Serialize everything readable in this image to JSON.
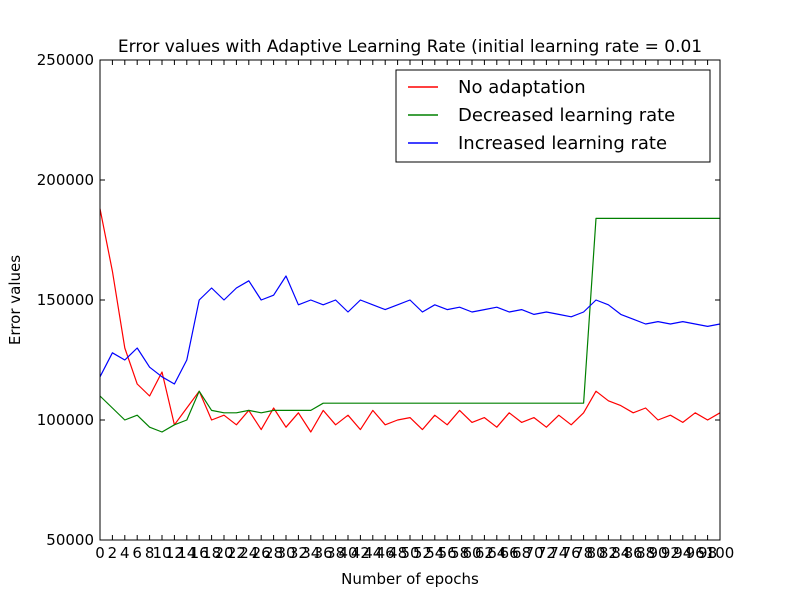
{
  "chart_data": {
    "type": "line",
    "title": "Error values with Adaptive Learning Rate (initial learning rate = 0.01",
    "xlabel": "Number of epochs",
    "ylabel": "Error values",
    "xlim": [
      0,
      1000
    ],
    "ylim": [
      50000,
      250000
    ],
    "y_ticks": [
      50000,
      100000,
      150000,
      200000,
      250000
    ],
    "y_tick_labels": [
      "50000",
      "100000",
      "150000",
      "200000",
      "250000"
    ],
    "x_tick_labels": [
      "0",
      "2",
      "4",
      "6",
      "8",
      "10",
      "12",
      "14",
      "16",
      "18",
      "20",
      "22",
      "24",
      "26",
      "28",
      "30",
      "32",
      "34",
      "36",
      "38",
      "40",
      "42",
      "44",
      "46",
      "48",
      "50",
      "52",
      "54",
      "56",
      "58",
      "60",
      "62",
      "64",
      "66",
      "68",
      "70",
      "72",
      "74",
      "76",
      "78",
      "80",
      "82",
      "84",
      "86",
      "88",
      "90",
      "92",
      "94",
      "96",
      "98",
      "100"
    ],
    "grid": false,
    "legend_position": "top-right",
    "series": [
      {
        "name": "No adaptation",
        "color": "#ff0000",
        "x": [
          0,
          20,
          40,
          60,
          80,
          100,
          120,
          140,
          160,
          180,
          200,
          220,
          240,
          260,
          280,
          300,
          320,
          340,
          360,
          380,
          400,
          420,
          440,
          460,
          480,
          500,
          520,
          540,
          560,
          580,
          600,
          620,
          640,
          660,
          680,
          700,
          720,
          740,
          760,
          780,
          800,
          820,
          840,
          860,
          880,
          900,
          920,
          940,
          960,
          980,
          1000
        ],
        "values": [
          188000,
          162000,
          130000,
          115000,
          110000,
          120000,
          98000,
          105000,
          112000,
          100000,
          102000,
          98000,
          104000,
          96000,
          105000,
          97000,
          103000,
          95000,
          104000,
          98000,
          102000,
          96000,
          104000,
          98000,
          100000,
          101000,
          96000,
          102000,
          98000,
          104000,
          99000,
          101000,
          97000,
          103000,
          99000,
          101000,
          97000,
          102000,
          98000,
          103000,
          112000,
          108000,
          106000,
          103000,
          105000,
          100000,
          102000,
          99000,
          103000,
          100000,
          103000
        ]
      },
      {
        "name": "Decreased learning rate",
        "color": "#008000",
        "x": [
          0,
          20,
          40,
          60,
          80,
          100,
          120,
          140,
          160,
          180,
          200,
          220,
          240,
          260,
          280,
          300,
          320,
          340,
          360,
          380,
          400,
          420,
          440,
          460,
          480,
          500,
          520,
          540,
          560,
          580,
          600,
          620,
          640,
          660,
          680,
          700,
          720,
          740,
          760,
          780,
          800,
          820,
          840,
          860,
          880,
          900,
          920,
          940,
          960,
          980,
          1000
        ],
        "values": [
          110000,
          105000,
          100000,
          102000,
          97000,
          95000,
          98000,
          100000,
          112000,
          104000,
          103000,
          103000,
          104000,
          103000,
          104000,
          104000,
          104000,
          104000,
          107000,
          107000,
          107000,
          107000,
          107000,
          107000,
          107000,
          107000,
          107000,
          107000,
          107000,
          107000,
          107000,
          107000,
          107000,
          107000,
          107000,
          107000,
          107000,
          107000,
          107000,
          107000,
          184000,
          184000,
          184000,
          184000,
          184000,
          184000,
          184000,
          184000,
          184000,
          184000,
          184000
        ]
      },
      {
        "name": "Increased learning rate",
        "color": "#0000ff",
        "x": [
          0,
          20,
          40,
          60,
          80,
          100,
          120,
          140,
          160,
          180,
          200,
          220,
          240,
          260,
          280,
          300,
          320,
          340,
          360,
          380,
          400,
          420,
          440,
          460,
          480,
          500,
          520,
          540,
          560,
          580,
          600,
          620,
          640,
          660,
          680,
          700,
          720,
          740,
          760,
          780,
          800,
          820,
          840,
          860,
          880,
          900,
          920,
          940,
          960,
          980,
          1000
        ],
        "values": [
          118000,
          128000,
          125000,
          130000,
          122000,
          118000,
          115000,
          125000,
          150000,
          155000,
          150000,
          155000,
          158000,
          150000,
          152000,
          160000,
          148000,
          150000,
          148000,
          150000,
          145000,
          150000,
          148000,
          146000,
          148000,
          150000,
          145000,
          148000,
          146000,
          147000,
          145000,
          146000,
          147000,
          145000,
          146000,
          144000,
          145000,
          144000,
          143000,
          145000,
          150000,
          148000,
          144000,
          142000,
          140000,
          141000,
          140000,
          141000,
          140000,
          139000,
          140000
        ]
      }
    ]
  }
}
